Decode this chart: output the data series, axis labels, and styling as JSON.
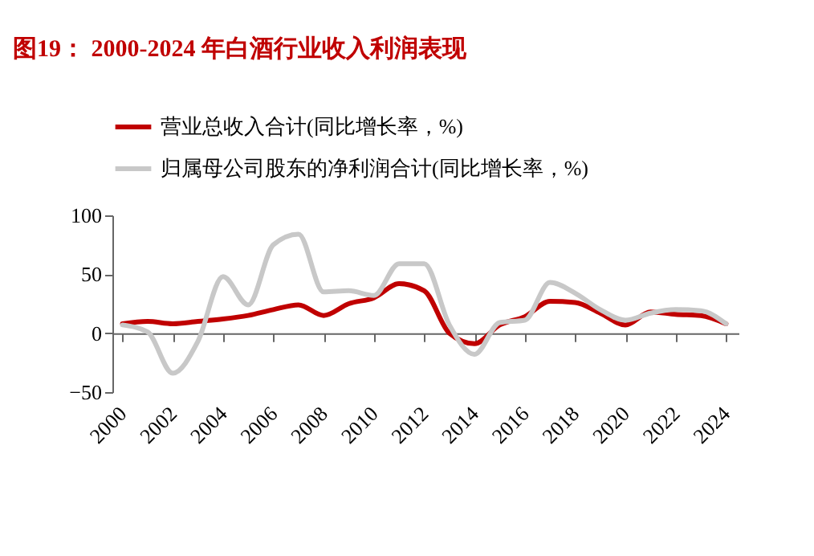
{
  "chart_data": {
    "type": "line",
    "title": "图19： 2000-2024 年白酒行业收入利润表现",
    "x": [
      2000,
      2001,
      2002,
      2003,
      2004,
      2005,
      2006,
      2007,
      2008,
      2009,
      2010,
      2011,
      2012,
      2013,
      2014,
      2015,
      2016,
      2017,
      2018,
      2019,
      2020,
      2021,
      2022,
      2023,
      2024
    ],
    "series": [
      {
        "name": "营业总收入合计(同比增长率，%)",
        "color": "#c00000",
        "values": [
          8,
          10,
          8,
          10,
          12,
          15,
          20,
          24,
          15,
          25,
          30,
          42,
          36,
          0,
          -9,
          7,
          14,
          27,
          26,
          17,
          7,
          18,
          16,
          15,
          8
        ]
      },
      {
        "name": "归属母公司股东的净利润合计(同比增长率，%)",
        "color": "#c8c8c8",
        "values": [
          7,
          1,
          -34,
          -7,
          48,
          24,
          75,
          84,
          35,
          36,
          32,
          59,
          59,
          7,
          -18,
          9,
          11,
          43,
          34,
          20,
          11,
          17,
          20,
          19,
          8
        ]
      }
    ],
    "xlim": [
      1999.6,
      2024.5
    ],
    "xticks": [
      2000,
      2002,
      2004,
      2006,
      2008,
      2010,
      2012,
      2014,
      2016,
      2018,
      2020,
      2022,
      2024
    ],
    "ylim": [
      -50,
      100
    ],
    "yticks": [
      -50,
      0,
      50,
      100
    ],
    "legend": "top left"
  }
}
